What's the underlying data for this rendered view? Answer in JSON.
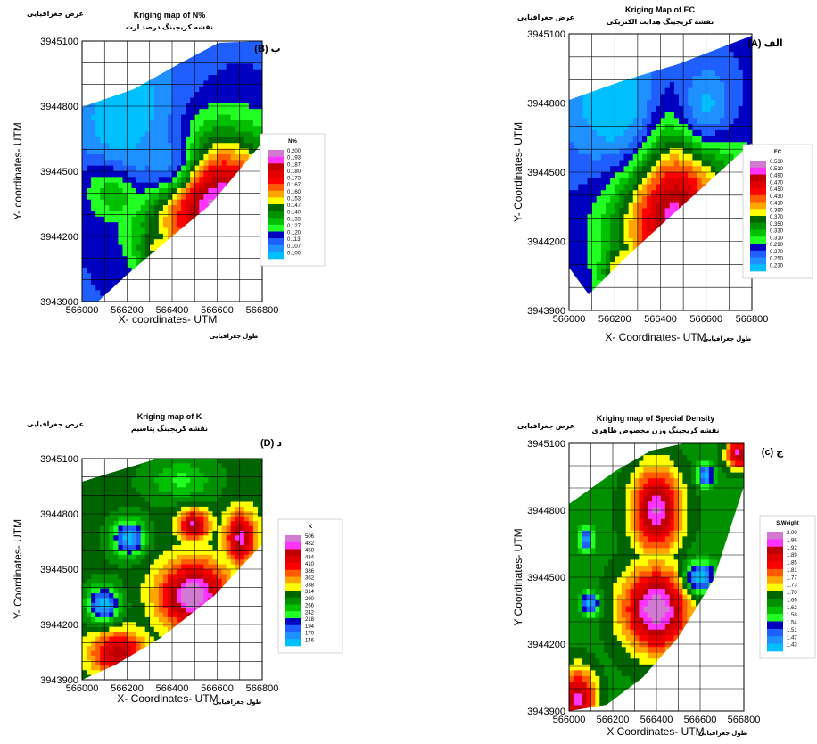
{
  "chart_data": [
    {
      "id": "B",
      "type": "heatmap",
      "title": "Kriging map of N%",
      "subtitle": "نقشه کریجینگ درصد ازت",
      "panel_label": "(B) ب",
      "ylabel": "Y- coordinates- UTM",
      "ylabel_fa": "عرض جغرافیایی",
      "xlabel": "X- coordinates- UTM",
      "xlabel_fa": "طول جغرافیایی",
      "xlim": [
        566000,
        566800
      ],
      "ylim": [
        3943900,
        3945100
      ],
      "xticks": [
        "566000",
        "566200",
        "566400",
        "566600",
        "566800"
      ],
      "yticks": [
        "3945100",
        "3944800",
        "3944500",
        "3944200",
        "3943900"
      ],
      "legend": {
        "title": "N%",
        "values": [
          "0.200",
          "0.193",
          "0.187",
          "0.180",
          "0.173",
          "0.167",
          "0.160",
          "0.153",
          "0.147",
          "0.140",
          "0.133",
          "0.127",
          "0.120",
          "0.113",
          "0.107",
          "0.100"
        ],
        "colors": [
          "#d27ad2",
          "#ff33ff",
          "#c00000",
          "#e00000",
          "#ff0000",
          "#ff5a00",
          "#ffa500",
          "#ffff00",
          "#006400",
          "#009000",
          "#00c000",
          "#22ff22",
          "#0000c0",
          "#1f5fff",
          "#1e90ff",
          "#00bfff"
        ]
      }
    },
    {
      "id": "A",
      "type": "heatmap",
      "title": "Kriging Map of EC",
      "subtitle": "نقشه کریجینگ هدایت الکتریکی",
      "panel_label": "(A) الف",
      "ylabel": "Y- Coordinates- UTM",
      "ylabel_fa": "عرض جغرافیایی",
      "xlabel": "X- Coordinates- UTM",
      "xlabel_fa": "طول جغرافیایی",
      "xlim": [
        566000,
        566800
      ],
      "ylim": [
        3943900,
        3945100
      ],
      "xticks": [
        "566000",
        "566200",
        "566400",
        "566600",
        "566800"
      ],
      "yticks": [
        "3945100",
        "3944800",
        "3944500",
        "3944200",
        "3943900"
      ],
      "legend": {
        "title": "EC",
        "values": [
          "0.530",
          "0.510",
          "0.490",
          "0.470",
          "0.450",
          "0.430",
          "0.410",
          "0.390",
          "0.370",
          "0.350",
          "0.330",
          "0.310",
          "0.290",
          "0.270",
          "0.250",
          "0.230"
        ],
        "colors": [
          "#d27ad2",
          "#ff33ff",
          "#c00000",
          "#e00000",
          "#ff0000",
          "#ff5a00",
          "#ffa500",
          "#ffff00",
          "#006400",
          "#009000",
          "#00c000",
          "#22ff22",
          "#0000c0",
          "#1f5fff",
          "#1e90ff",
          "#00bfff"
        ]
      }
    },
    {
      "id": "D",
      "type": "heatmap",
      "title": "Kriging map of K",
      "subtitle": "نقشه کریجینگ پتاسیم",
      "panel_label": "(D) د",
      "ylabel": "Y- Coordinates- UTM",
      "ylabel_fa": "عرض جغرافیایی",
      "xlabel": "X- Coordinates- UTM",
      "xlabel_fa": "طول جغرافیایی",
      "xlim": [
        566000,
        566800
      ],
      "ylim": [
        3943900,
        3945100
      ],
      "xticks": [
        "566000",
        "566200",
        "566400",
        "566600",
        "566800"
      ],
      "yticks": [
        "3945100",
        "3944800",
        "3944500",
        "3944200",
        "3943900"
      ],
      "legend": {
        "title": "K",
        "values": [
          "506",
          "482",
          "458",
          "434",
          "410",
          "386",
          "362",
          "338",
          "314",
          "290",
          "266",
          "242",
          "218",
          "194",
          "170",
          "146"
        ],
        "colors": [
          "#d27ad2",
          "#ff33ff",
          "#c00000",
          "#e00000",
          "#ff0000",
          "#ff5a00",
          "#ffa500",
          "#ffff00",
          "#006400",
          "#009000",
          "#00c000",
          "#22ff22",
          "#0000c0",
          "#1f5fff",
          "#1e90ff",
          "#00bfff"
        ]
      }
    },
    {
      "id": "C",
      "type": "heatmap",
      "title": "Kriging map of Special Density",
      "subtitle": "نقشه کریجینگ وزن مخصوص ظاهری",
      "panel_label": "(c) ج",
      "ylabel": "Y Coordinates- UTM",
      "ylabel_fa": "عرض جغرافیایی",
      "xlabel": "X Coordinates- UTM",
      "xlabel_fa": "طول جغرافیایی",
      "xlim": [
        566000,
        566800
      ],
      "ylim": [
        3943900,
        3945100
      ],
      "xticks": [
        "566000",
        "566200",
        "566400",
        "566600",
        "566800"
      ],
      "yticks": [
        "3945100",
        "3944800",
        "3944500",
        "3944200",
        "3943900"
      ],
      "legend": {
        "title": "S.Weight",
        "values": [
          "2.00",
          "1.96",
          "1.92",
          "1.89",
          "1.85",
          "1.81",
          "1.77",
          "1.73",
          "1.70",
          "1.66",
          "1.62",
          "1.58",
          "1.54",
          "1.51",
          "1.47",
          "1.43"
        ],
        "colors": [
          "#d27ad2",
          "#ff33ff",
          "#c00000",
          "#e00000",
          "#ff0000",
          "#ff5a00",
          "#ffa500",
          "#ffff00",
          "#006400",
          "#009000",
          "#00c000",
          "#22ff22",
          "#0000c0",
          "#1f5fff",
          "#1e90ff",
          "#00bfff"
        ]
      }
    }
  ]
}
